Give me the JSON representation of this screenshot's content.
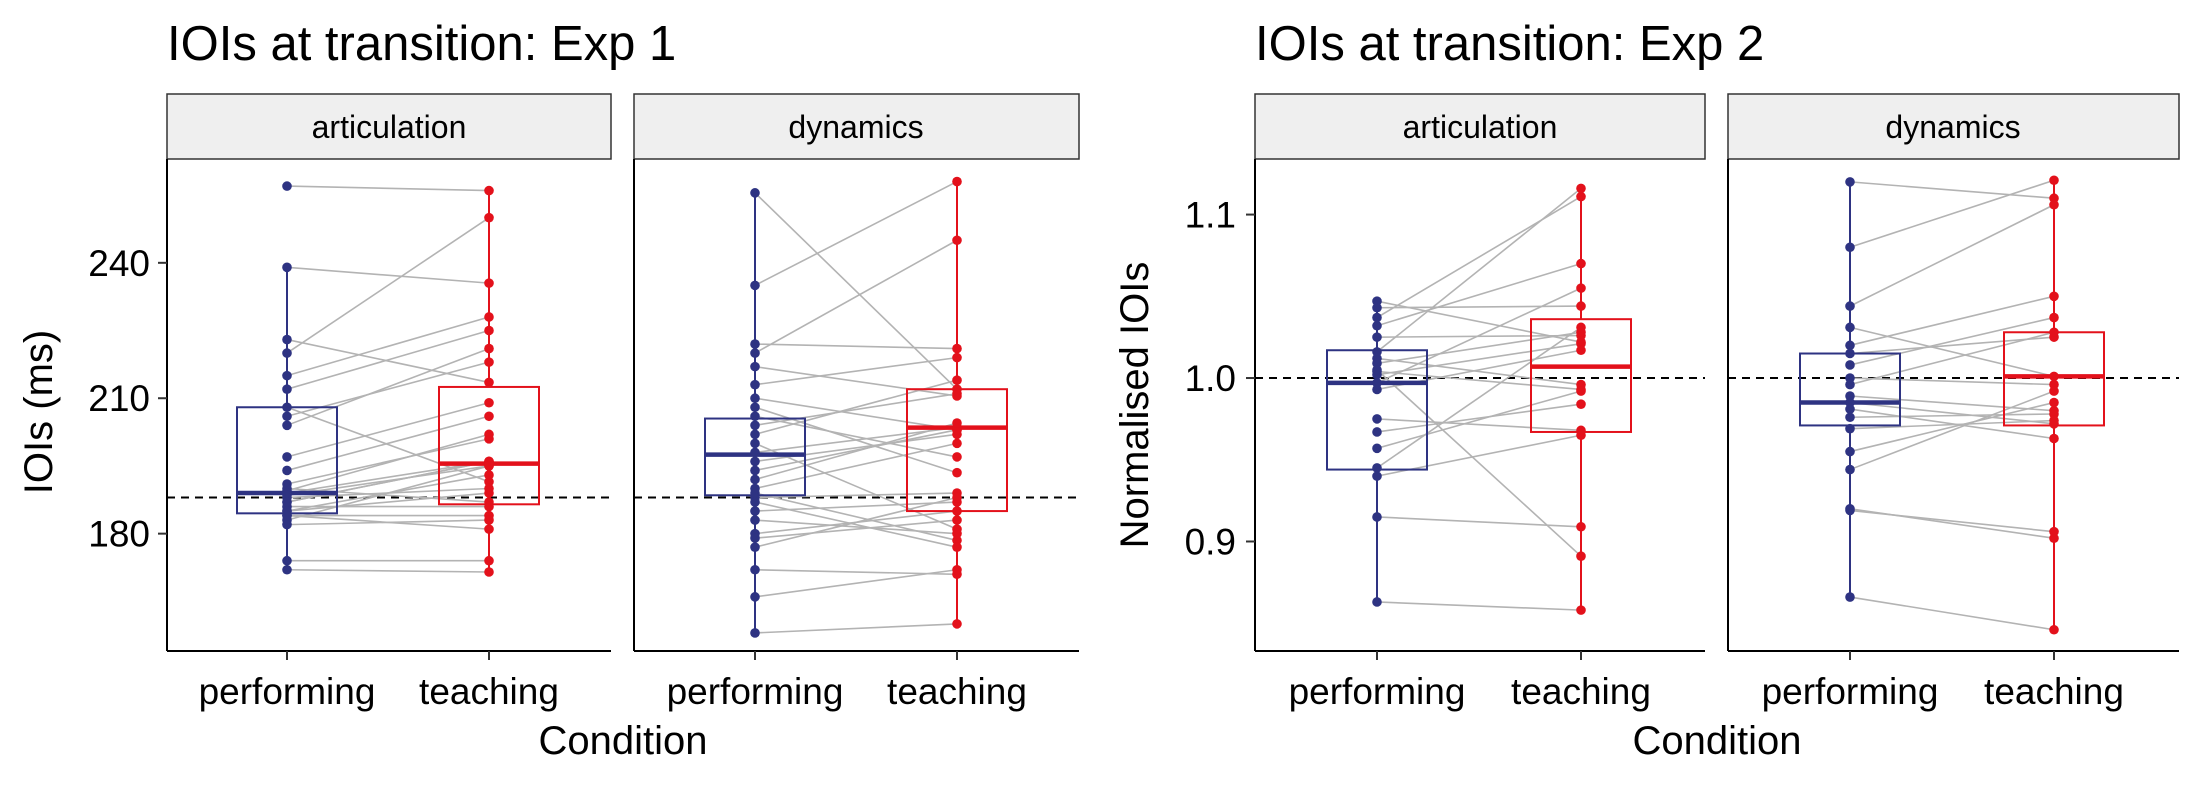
{
  "colors": {
    "performing": "#2e3382",
    "teaching": "#e3111b",
    "pair_line": "#b3b3b3",
    "reference_line": "#000000",
    "strip_fill": "#efefef"
  },
  "chart_data": [
    {
      "type": "box",
      "title": "IOIs at transition: Exp 1",
      "xlabel": "Condition",
      "ylabel": "IOIs (ms)",
      "ylim": [
        154,
        263
      ],
      "yticks": [
        180,
        210,
        240
      ],
      "reference_line": 188,
      "categories": [
        "performing",
        "teaching"
      ],
      "legend": "none",
      "grid": false,
      "panels": [
        {
          "facet": "articulation",
          "boxes": [
            {
              "category": "performing",
              "q1": 184.5,
              "median": 189,
              "q3": 208
            },
            {
              "category": "teaching",
              "q1": 186.5,
              "median": 195.5,
              "q3": 212.5
            }
          ],
          "whiskers": [
            {
              "category": "performing",
              "low": 172,
              "high": 239
            },
            {
              "category": "teaching",
              "low": 171.5,
              "high": 257
            }
          ],
          "pairs": [
            [
              257,
              256
            ],
            [
              239,
              235.5
            ],
            [
              223,
              213.5
            ],
            [
              220,
              250
            ],
            [
              215,
              228
            ],
            [
              212,
              225
            ],
            [
              208,
              191.5
            ],
            [
              206,
              218
            ],
            [
              204,
              221
            ],
            [
              197,
              209
            ],
            [
              194,
              206
            ],
            [
              191,
              201
            ],
            [
              190,
              187
            ],
            [
              189.5,
              202
            ],
            [
              189,
              196
            ],
            [
              188.5,
              195
            ],
            [
              188,
              190
            ],
            [
              187,
              196
            ],
            [
              187,
              196
            ],
            [
              186,
              186
            ],
            [
              185,
              189
            ],
            [
              185,
              193
            ],
            [
              184,
              184
            ],
            [
              184,
              181
            ],
            [
              183,
              195
            ],
            [
              182,
              183
            ],
            [
              174,
              174
            ],
            [
              172,
              171.5
            ]
          ]
        },
        {
          "facet": "dynamics",
          "boxes": [
            {
              "category": "performing",
              "q1": 188.5,
              "median": 197.5,
              "q3": 205.5
            },
            {
              "category": "teaching",
              "q1": 185,
              "median": 203.5,
              "q3": 212
            }
          ],
          "whiskers": [
            {
              "category": "performing",
              "low": 158,
              "high": 255.5
            },
            {
              "category": "teaching",
              "low": 160,
              "high": 258
            }
          ],
          "pairs": [
            [
              255.5,
              212
            ],
            [
              235,
              258
            ],
            [
              222,
              221
            ],
            [
              220,
              245
            ],
            [
              217,
              210.5
            ],
            [
              213,
              219
            ],
            [
              210,
              203
            ],
            [
              208,
              193.5
            ],
            [
              206,
              197
            ],
            [
              204,
              211
            ],
            [
              202,
              214
            ],
            [
              200,
              181
            ],
            [
              198,
              203.5
            ],
            [
              196,
              202
            ],
            [
              194,
              203
            ],
            [
              192,
              204.5
            ],
            [
              190,
              200
            ],
            [
              189,
              178.5
            ],
            [
              188,
              189
            ],
            [
              187,
              177
            ],
            [
              185,
              187
            ],
            [
              183,
              180
            ],
            [
              180,
              185
            ],
            [
              179,
              183
            ],
            [
              177,
              188
            ],
            [
              172,
              171
            ],
            [
              166,
              172
            ],
            [
              158,
              160
            ]
          ]
        }
      ]
    },
    {
      "type": "box",
      "title": "IOIs at transition: Exp 2",
      "xlabel": "Condition",
      "ylabel": "Normalised IOIs",
      "ylim": [
        0.833,
        1.134
      ],
      "yticks": [
        0.9,
        1.0,
        1.1
      ],
      "reference_line": 1.0,
      "categories": [
        "performing",
        "teaching"
      ],
      "legend": "none",
      "grid": false,
      "panels": [
        {
          "facet": "articulation",
          "boxes": [
            {
              "category": "performing",
              "q1": 0.944,
              "median": 0.997,
              "q3": 1.017
            },
            {
              "category": "teaching",
              "q1": 0.967,
              "median": 1.007,
              "q3": 1.036
            }
          ],
          "whiskers": [
            {
              "category": "performing",
              "low": 0.863,
              "high": 1.047
            },
            {
              "category": "teaching",
              "low": 0.858,
              "high": 1.116
            }
          ],
          "pairs": [
            [
              1.047,
              1.022
            ],
            [
              1.043,
              1.044
            ],
            [
              1.037,
              1.111
            ],
            [
              1.032,
              1.07
            ],
            [
              1.025,
              1.026
            ],
            [
              1.016,
              1.116
            ],
            [
              1.012,
              0.996
            ],
            [
              1.009,
              1.028
            ],
            [
              1.004,
              0.993
            ],
            [
              1.002,
              1.021
            ],
            [
              0.997,
              1.055
            ],
            [
              0.993,
              1.017
            ],
            [
              0.975,
              0.968
            ],
            [
              0.967,
              0.984
            ],
            [
              0.957,
              0.992
            ],
            [
              0.945,
              1.031
            ],
            [
              0.94,
              0.965
            ],
            [
              0.915,
              0.909
            ],
            [
              0.863,
              0.858
            ],
            [
              1.005,
              0.891
            ]
          ]
        },
        {
          "facet": "dynamics",
          "boxes": [
            {
              "category": "performing",
              "q1": 0.971,
              "median": 0.985,
              "q3": 1.015
            },
            {
              "category": "teaching",
              "q1": 0.971,
              "median": 1.001,
              "q3": 1.028
            }
          ],
          "whiskers": [
            {
              "category": "performing",
              "low": 0.866,
              "high": 1.12
            },
            {
              "category": "teaching",
              "low": 0.846,
              "high": 1.121
            }
          ],
          "pairs": [
            [
              1.12,
              1.11
            ],
            [
              1.08,
              1.121
            ],
            [
              1.044,
              1.106
            ],
            [
              1.031,
              1.001
            ],
            [
              1.02,
              1.05
            ],
            [
              1.015,
              1.025
            ],
            [
              1.008,
              1.037
            ],
            [
              1.0,
              0.996
            ],
            [
              0.996,
              1.028
            ],
            [
              0.989,
              0.98
            ],
            [
              0.985,
              0.972
            ],
            [
              0.981,
              0.963
            ],
            [
              0.976,
              0.978
            ],
            [
              0.969,
              0.974
            ],
            [
              0.955,
              0.985
            ],
            [
              0.944,
              0.992
            ],
            [
              0.92,
              0.902
            ],
            [
              0.919,
              0.906
            ],
            [
              0.866,
              0.846
            ]
          ]
        }
      ]
    }
  ]
}
